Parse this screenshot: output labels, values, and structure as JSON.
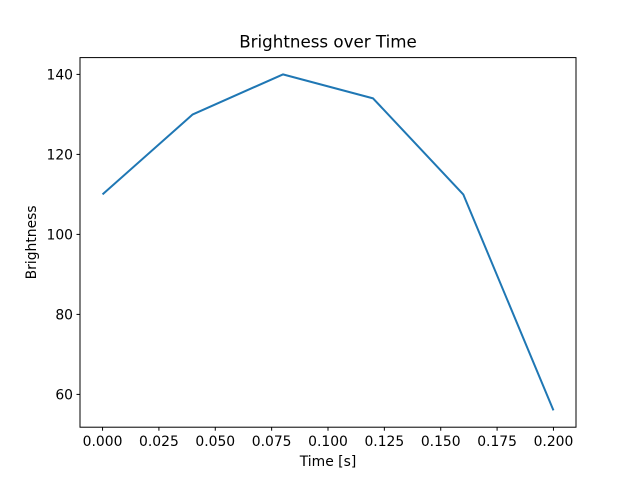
{
  "chart_data": {
    "type": "line",
    "title": "Brightness over Time",
    "xlabel": "Time [s]",
    "ylabel": "Brightness",
    "x": [
      0.0,
      0.04,
      0.08,
      0.12,
      0.16,
      0.2
    ],
    "series": [
      {
        "name": "brightness",
        "values": [
          110,
          130,
          140,
          134,
          110,
          56
        ]
      }
    ],
    "xlim": [
      -0.01,
      0.21
    ],
    "ylim": [
      51.8,
      144.2
    ],
    "x_ticks": [
      0.0,
      0.025,
      0.05,
      0.075,
      0.1,
      0.125,
      0.15,
      0.175,
      0.2
    ],
    "x_tick_labels": [
      "0.000",
      "0.025",
      "0.050",
      "0.075",
      "0.100",
      "0.125",
      "0.150",
      "0.175",
      "0.200"
    ],
    "y_ticks": [
      60,
      80,
      100,
      120,
      140
    ],
    "y_tick_labels": [
      "60",
      "80",
      "100",
      "120",
      "140"
    ],
    "line_color": "#1f77b4",
    "spine_color": "#000000",
    "background_color": "#ffffff",
    "grid": false,
    "legend": null
  }
}
